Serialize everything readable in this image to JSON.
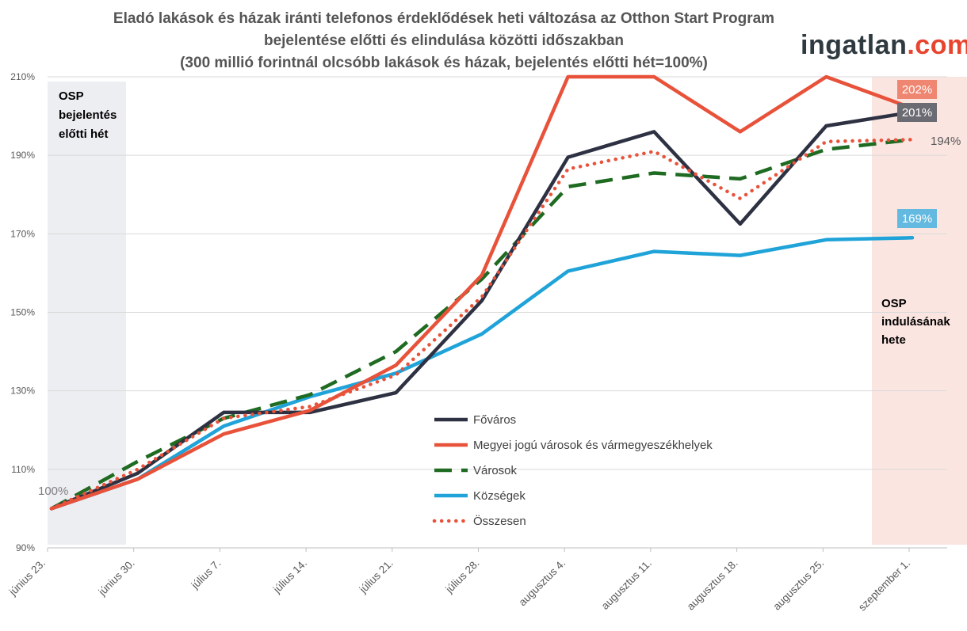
{
  "title_lines": [
    "Eladó lakások és házak iránti telefonos érdeklődések heti változása az Otthon Start Program",
    "bejelentése előtti és elindulása közötti időszakban",
    "(300 millió forintnál olcsóbb lakások és házak, bejelentés előtti hét=100%)"
  ],
  "logo": {
    "main": "ingatlan",
    "accent": ".com"
  },
  "annotations": {
    "left": [
      "OSP",
      "bejelentés",
      "előtti hét"
    ],
    "right": [
      "OSP",
      "indulásának",
      "hete"
    ]
  },
  "colors": {
    "fovaros": "#2d3142",
    "megyei": "#e8523a",
    "varosok": "#1e6b21",
    "kozsegek": "#1fa3d8",
    "osszesen": "#e8523a",
    "left_shade": "#edeef2",
    "right_shade": "#fbe5e1"
  },
  "chart_data": {
    "type": "line",
    "x": [
      "június 23.",
      "június 30.",
      "július 7.",
      "július 14.",
      "július 21.",
      "július 28.",
      "augusztus 4.",
      "augusztus 11.",
      "augusztus 18.",
      "augusztus 25.",
      "szeptember 1."
    ],
    "ylim": [
      90,
      210
    ],
    "yticks": [
      "90%",
      "110%",
      "130%",
      "150%",
      "170%",
      "190%",
      "210%"
    ],
    "ytick_values": [
      90,
      110,
      130,
      150,
      170,
      190,
      210
    ],
    "start_label": "100%",
    "series": [
      {
        "name": "Főváros",
        "key": "fovaros",
        "style": "solid",
        "values": [
          100,
          109,
          124.5,
          124.5,
          129.5,
          153,
          189.5,
          196,
          172.5,
          197.5,
          201
        ],
        "end_label": "201%"
      },
      {
        "name": "Megyei jogú városok és vármegyeszékhelyek",
        "key": "megyei",
        "style": "solid",
        "values": [
          100,
          107.5,
          119,
          125,
          136.5,
          159.5,
          210,
          210,
          196,
          210,
          202
        ],
        "end_label": "202%"
      },
      {
        "name": "Városok",
        "key": "varosok",
        "style": "dashed",
        "values": [
          100,
          112,
          123,
          129,
          140,
          158.5,
          182,
          185.5,
          184,
          191.5,
          194
        ],
        "end_label": "194%"
      },
      {
        "name": "Községek",
        "key": "kozsegek",
        "style": "solid",
        "values": [
          100,
          107.5,
          121,
          128.5,
          134.5,
          144.5,
          160.5,
          165.5,
          164.5,
          168.5,
          169
        ],
        "end_label": "169%"
      },
      {
        "name": "Összesen",
        "key": "osszesen",
        "style": "dotted",
        "values": [
          100,
          110,
          123,
          126,
          134,
          154,
          186.5,
          191,
          179,
          193.5,
          194
        ]
      }
    ],
    "legend_position": "center"
  }
}
